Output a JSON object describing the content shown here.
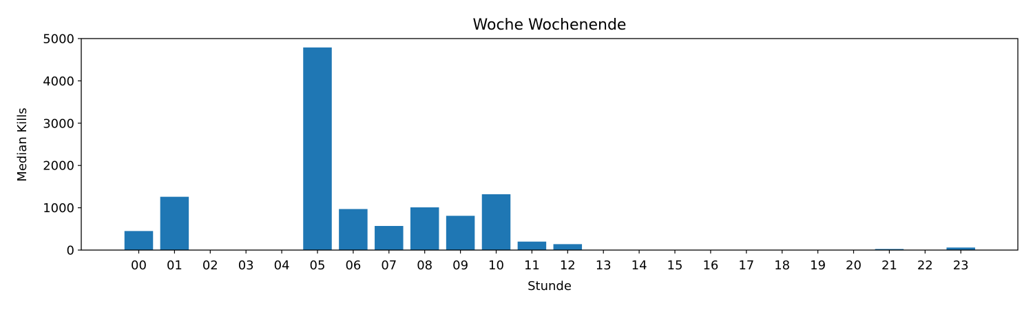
{
  "chart_data": {
    "type": "bar",
    "title": "Woche Wochenende",
    "xlabel": "Stunde",
    "ylabel": "Median Kills",
    "categories": [
      "00",
      "01",
      "02",
      "03",
      "04",
      "05",
      "06",
      "07",
      "08",
      "09",
      "10",
      "11",
      "12",
      "13",
      "14",
      "15",
      "16",
      "17",
      "18",
      "19",
      "20",
      "21",
      "22",
      "23"
    ],
    "values": [
      450,
      1260,
      0,
      0,
      0,
      4790,
      970,
      570,
      1010,
      810,
      1320,
      200,
      140,
      0,
      0,
      0,
      0,
      0,
      0,
      0,
      0,
      25,
      0,
      60
    ],
    "ylim": [
      0,
      5000
    ],
    "yticks": [
      0,
      1000,
      2000,
      3000,
      4000,
      5000
    ],
    "bar_color": "#1f77b4",
    "grid": false,
    "legend": false
  }
}
